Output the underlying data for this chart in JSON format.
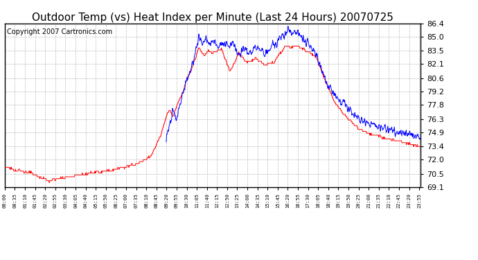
{
  "title": "Outdoor Temp (vs) Heat Index per Minute (Last 24 Hours) 20070725",
  "copyright": "Copyright 2007 Cartronics.com",
  "ylim": [
    69.1,
    86.4
  ],
  "yticks": [
    69.1,
    70.5,
    72.0,
    73.4,
    74.9,
    76.3,
    77.8,
    79.2,
    80.6,
    82.1,
    83.5,
    85.0,
    86.4
  ],
  "bg_color": "#ffffff",
  "plot_bg_color": "#ffffff",
  "grid_color": "#bbbbbb",
  "outdoor_color": "#ff0000",
  "heatindex_color": "#0000ff",
  "title_fontsize": 11,
  "copyright_fontsize": 7,
  "xtick_interval_minutes": 35
}
